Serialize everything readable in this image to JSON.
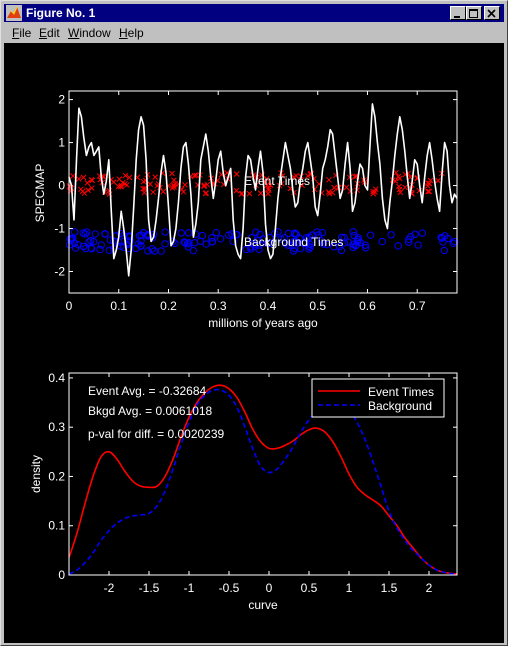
{
  "window": {
    "title": "Figure No. 1"
  },
  "menu": {
    "file_first": "F",
    "file_rest": "ile",
    "edit_first": "E",
    "edit_rest": "dit",
    "window_first": "W",
    "window_rest": "indow",
    "help_first": "H",
    "help_rest": "elp"
  },
  "colors": {
    "event": "#ff0000",
    "background": "#0000ff",
    "axes": "#ffffff",
    "plot_bg": "#000000"
  },
  "chart_data": [
    {
      "type": "line",
      "ylabel": "SPECMAP",
      "xlabel": "millions of years ago",
      "xlim": [
        0,
        0.78
      ],
      "ylim": [
        -2.5,
        2.2
      ],
      "xticks": [
        0,
        0.1,
        0.2,
        0.3,
        0.4,
        0.5,
        0.6,
        0.7
      ],
      "xtick_labels": [
        "0",
        "0.1",
        "0.2",
        "0.3",
        "0.4",
        "0.5",
        "0.6",
        "0.7"
      ],
      "yticks": [
        -2,
        -1,
        0,
        1,
        2
      ],
      "ytick_labels": [
        "-2",
        "-1",
        "0",
        "1",
        "2"
      ],
      "annotations": [
        {
          "text": "Event Times",
          "x": 0.355,
          "y": 0.08
        },
        {
          "text": "Background Times",
          "x": 0.355,
          "y": -1.4
        }
      ],
      "series": [
        {
          "kind": "line",
          "x": [
            0,
            0.005,
            0.01,
            0.015,
            0.02,
            0.025,
            0.03,
            0.035,
            0.04,
            0.045,
            0.05,
            0.055,
            0.06,
            0.065,
            0.07,
            0.075,
            0.08,
            0.085,
            0.09,
            0.095,
            0.1,
            0.105,
            0.11,
            0.115,
            0.12,
            0.125,
            0.13,
            0.135,
            0.14,
            0.145,
            0.15,
            0.155,
            0.16,
            0.165,
            0.17,
            0.175,
            0.18,
            0.185,
            0.19,
            0.195,
            0.2,
            0.205,
            0.21,
            0.215,
            0.22,
            0.225,
            0.23,
            0.235,
            0.24,
            0.245,
            0.25,
            0.255,
            0.26,
            0.265,
            0.27,
            0.275,
            0.28,
            0.285,
            0.29,
            0.295,
            0.3,
            0.305,
            0.31,
            0.315,
            0.32,
            0.325,
            0.33,
            0.335,
            0.34,
            0.345,
            0.35,
            0.355,
            0.36,
            0.365,
            0.37,
            0.375,
            0.38,
            0.385,
            0.39,
            0.395,
            0.4,
            0.405,
            0.41,
            0.415,
            0.42,
            0.425,
            0.43,
            0.435,
            0.44,
            0.445,
            0.45,
            0.455,
            0.46,
            0.465,
            0.47,
            0.475,
            0.48,
            0.485,
            0.49,
            0.495,
            0.5,
            0.505,
            0.51,
            0.515,
            0.52,
            0.525,
            0.53,
            0.535,
            0.54,
            0.545,
            0.55,
            0.555,
            0.56,
            0.565,
            0.57,
            0.575,
            0.58,
            0.585,
            0.59,
            0.595,
            0.6,
            0.605,
            0.61,
            0.615,
            0.62,
            0.625,
            0.63,
            0.635,
            0.64,
            0.645,
            0.65,
            0.655,
            0.66,
            0.665,
            0.67,
            0.675,
            0.68,
            0.685,
            0.69,
            0.695,
            0.7,
            0.705,
            0.71,
            0.715,
            0.72,
            0.725,
            0.73,
            0.735,
            0.74,
            0.745,
            0.75,
            0.755,
            0.76,
            0.765,
            0.77,
            0.775,
            0.78
          ],
          "y": [
            0.2,
            0.0,
            -0.8,
            0.6,
            1.8,
            1.6,
            1.1,
            0.7,
            0.9,
            1.0,
            0.7,
            0.8,
            0.9,
            0.2,
            -0.2,
            0.1,
            0.6,
            -0.6,
            -1.7,
            -1.5,
            -1.2,
            -0.6,
            -1.0,
            -1.5,
            -2.1,
            -1.5,
            -0.5,
            0.6,
            1.3,
            1.6,
            1.4,
            0.6,
            -0.8,
            -1.3,
            -1.2,
            -0.8,
            -0.3,
            0.3,
            0.7,
            0.3,
            -0.5,
            -1.4,
            -1.3,
            -1.0,
            -0.4,
            0.4,
            0.9,
            1.0,
            0.5,
            -0.2,
            -1.2,
            -0.9,
            -0.4,
            0.6,
            0.9,
            1.2,
            0.8,
            0.2,
            -0.3,
            0.1,
            0.6,
            0.8,
            0.3,
            0.0,
            0.2,
            0.4,
            -0.8,
            -1.4,
            -1.6,
            -1.7,
            -1.0,
            0.2,
            0.7,
            0.6,
            0.2,
            -0.1,
            0.4,
            0.8,
            0.3,
            -0.9,
            -1.5,
            -1.7,
            -1.6,
            -1.0,
            -0.3,
            0.2,
            0.6,
            1.0,
            0.7,
            0.4,
            -0.1,
            -0.5,
            -0.4,
            0.1,
            0.4,
            0.8,
            1.0,
            0.6,
            0.2,
            -0.5,
            -0.7,
            -0.2,
            0.4,
            0.6,
            0.9,
            1.3,
            1.2,
            0.7,
            0.2,
            -0.3,
            -0.1,
            0.5,
            1.0,
            0.4,
            -0.6,
            -0.4,
            0.1,
            0.5,
            0.4,
            0.0,
            -0.1,
            0.9,
            1.9,
            1.6,
            1.0,
            0.5,
            -0.3,
            -0.8,
            -1.0,
            -0.4,
            0.1,
            0.7,
            1.2,
            1.6,
            1.3,
            0.8,
            0.2,
            -0.3,
            0.1,
            0.6,
            0.5,
            0.0,
            -0.4,
            0.2,
            0.7,
            1.0,
            0.6,
            0.1,
            -0.3,
            -0.6,
            0.3,
            1.0,
            0.8,
            0.0,
            -0.4,
            -0.2,
            -0.3
          ]
        }
      ]
    },
    {
      "type": "line",
      "xlabel": "curve",
      "ylabel": "density",
      "xlim": [
        -2.5,
        2.35
      ],
      "ylim": [
        0,
        0.41
      ],
      "xticks": [
        -2,
        -1.5,
        -1,
        -0.5,
        0,
        0.5,
        1,
        1.5,
        2
      ],
      "xtick_labels": [
        "-2",
        "-1.5",
        "-1",
        "-0.5",
        "0",
        "0.5",
        "1",
        "1.5",
        "2"
      ],
      "yticks": [
        0,
        0.1,
        0.2,
        0.3,
        0.4
      ],
      "ytick_labels": [
        "0",
        "0.1",
        "0.2",
        "0.3",
        "0.4"
      ],
      "legend": {
        "placement": "top-right",
        "entries": [
          "Event Times",
          "Background"
        ]
      },
      "stats_text": [
        "Event Avg. = -0.32684",
        "Bkgd Avg. = 0.0061018",
        "p-val for diff. = 0.0020239"
      ],
      "series": [
        {
          "name": "Event Times",
          "color": "#ff0000",
          "style": "solid",
          "x": [
            -2.5,
            -2.4,
            -2.3,
            -2.2,
            -2.1,
            -2.0,
            -1.9,
            -1.8,
            -1.7,
            -1.6,
            -1.5,
            -1.4,
            -1.3,
            -1.2,
            -1.1,
            -1.0,
            -0.9,
            -0.8,
            -0.7,
            -0.6,
            -0.5,
            -0.4,
            -0.3,
            -0.2,
            -0.1,
            0.0,
            0.1,
            0.2,
            0.3,
            0.4,
            0.5,
            0.6,
            0.7,
            0.8,
            0.9,
            1.0,
            1.1,
            1.2,
            1.3,
            1.4,
            1.5,
            1.6,
            1.7,
            1.8,
            1.9,
            2.0,
            2.1,
            2.2,
            2.35
          ],
          "y": [
            0.035,
            0.085,
            0.145,
            0.2,
            0.24,
            0.25,
            0.235,
            0.21,
            0.19,
            0.18,
            0.178,
            0.18,
            0.2,
            0.235,
            0.28,
            0.32,
            0.35,
            0.37,
            0.382,
            0.385,
            0.378,
            0.36,
            0.33,
            0.295,
            0.27,
            0.257,
            0.257,
            0.263,
            0.272,
            0.285,
            0.295,
            0.298,
            0.29,
            0.27,
            0.24,
            0.205,
            0.178,
            0.163,
            0.152,
            0.14,
            0.12,
            0.1,
            0.075,
            0.055,
            0.035,
            0.02,
            0.01,
            0.005,
            0.002
          ]
        },
        {
          "name": "Background",
          "color": "#0000ff",
          "style": "dashed",
          "x": [
            -2.5,
            -2.4,
            -2.3,
            -2.2,
            -2.1,
            -2.0,
            -1.9,
            -1.8,
            -1.7,
            -1.6,
            -1.5,
            -1.4,
            -1.3,
            -1.2,
            -1.1,
            -1.0,
            -0.9,
            -0.8,
            -0.7,
            -0.6,
            -0.5,
            -0.4,
            -0.3,
            -0.2,
            -0.1,
            0.0,
            0.1,
            0.2,
            0.3,
            0.4,
            0.5,
            0.6,
            0.7,
            0.8,
            0.9,
            1.0,
            1.1,
            1.2,
            1.3,
            1.4,
            1.5,
            1.6,
            1.7,
            1.8,
            1.9,
            2.0,
            2.1,
            2.2,
            2.35
          ],
          "y": [
            0.002,
            0.01,
            0.025,
            0.045,
            0.07,
            0.09,
            0.105,
            0.115,
            0.12,
            0.122,
            0.125,
            0.14,
            0.17,
            0.215,
            0.265,
            0.31,
            0.345,
            0.365,
            0.375,
            0.375,
            0.365,
            0.34,
            0.3,
            0.255,
            0.22,
            0.208,
            0.215,
            0.235,
            0.26,
            0.29,
            0.315,
            0.335,
            0.35,
            0.355,
            0.35,
            0.335,
            0.31,
            0.275,
            0.23,
            0.18,
            0.13,
            0.095,
            0.07,
            0.05,
            0.035,
            0.02,
            0.01,
            0.005,
            0.001
          ]
        }
      ]
    }
  ]
}
